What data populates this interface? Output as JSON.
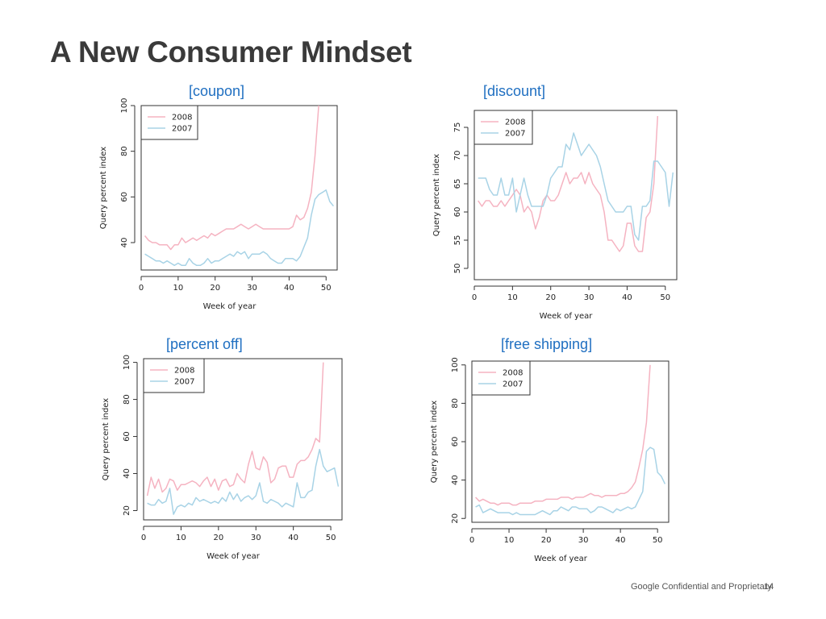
{
  "slide": {
    "title": "A New Consumer Mindset",
    "footer": "Google Confidential and Proprietary",
    "page_number": "14"
  },
  "colors": {
    "2008": "#f5b3c1",
    "2007": "#a8d3e6",
    "title": "#1f6fc1",
    "axis": "#333333"
  },
  "chart_data": [
    {
      "type": "line",
      "title": "[coupon]",
      "xlabel": "Week of year",
      "ylabel": "Query percent index",
      "xlim": [
        0,
        53
      ],
      "ylim": [
        28,
        100
      ],
      "xticks": [
        0,
        10,
        20,
        30,
        40,
        50
      ],
      "yticks": [
        40,
        60,
        80,
        100
      ],
      "legend_position": "top-left",
      "series": [
        {
          "name": "2008",
          "color": "#f5b3c1",
          "x": [
            1,
            2,
            3,
            4,
            5,
            6,
            7,
            8,
            9,
            10,
            11,
            12,
            13,
            14,
            15,
            16,
            17,
            18,
            19,
            20,
            21,
            22,
            23,
            24,
            25,
            26,
            27,
            28,
            29,
            30,
            31,
            32,
            33,
            34,
            35,
            36,
            37,
            38,
            39,
            40,
            41,
            42,
            43,
            44,
            45,
            46,
            47,
            48
          ],
          "y": [
            43,
            41,
            40,
            40,
            39,
            39,
            39,
            37,
            39,
            39,
            42,
            40,
            41,
            42,
            41,
            42,
            43,
            42,
            44,
            43,
            44,
            45,
            46,
            46,
            46,
            47,
            48,
            47,
            46,
            47,
            48,
            47,
            46,
            46,
            46,
            46,
            46,
            46,
            46,
            46,
            47,
            52,
            50,
            51,
            55,
            62,
            78,
            100
          ]
        },
        {
          "name": "2007",
          "color": "#a8d3e6",
          "x": [
            1,
            2,
            3,
            4,
            5,
            6,
            7,
            8,
            9,
            10,
            11,
            12,
            13,
            14,
            15,
            16,
            17,
            18,
            19,
            20,
            21,
            22,
            23,
            24,
            25,
            26,
            27,
            28,
            29,
            30,
            31,
            32,
            33,
            34,
            35,
            36,
            37,
            38,
            39,
            40,
            41,
            42,
            43,
            44,
            45,
            46,
            47,
            48,
            49,
            50,
            51,
            52
          ],
          "y": [
            35,
            34,
            33,
            32,
            32,
            31,
            32,
            31,
            30,
            31,
            30,
            30,
            33,
            31,
            30,
            30,
            31,
            33,
            31,
            32,
            32,
            33,
            34,
            35,
            34,
            36,
            35,
            36,
            33,
            35,
            35,
            35,
            36,
            35,
            33,
            32,
            31,
            31,
            33,
            33,
            33,
            32,
            34,
            38,
            42,
            52,
            59,
            61,
            62,
            63,
            58,
            56
          ]
        }
      ]
    },
    {
      "type": "line",
      "title": "[discount]",
      "xlabel": "Week of year",
      "ylabel": "Query percent index",
      "xlim": [
        0,
        53
      ],
      "ylim": [
        48,
        78
      ],
      "xticks": [
        0,
        10,
        20,
        30,
        40,
        50
      ],
      "yticks": [
        50,
        55,
        60,
        65,
        70,
        75
      ],
      "legend_position": "top-left",
      "series": [
        {
          "name": "2008",
          "color": "#f5b3c1",
          "x": [
            1,
            2,
            3,
            4,
            5,
            6,
            7,
            8,
            9,
            10,
            11,
            12,
            13,
            14,
            15,
            16,
            17,
            18,
            19,
            20,
            21,
            22,
            23,
            24,
            25,
            26,
            27,
            28,
            29,
            30,
            31,
            32,
            33,
            34,
            35,
            36,
            37,
            38,
            39,
            40,
            41,
            42,
            43,
            44,
            45,
            46,
            47,
            48
          ],
          "y": [
            62,
            61,
            62,
            62,
            61,
            61,
            62,
            61,
            62,
            63,
            64,
            63,
            60,
            61,
            60,
            57,
            59,
            62,
            63,
            62,
            62,
            63,
            65,
            67,
            65,
            66,
            66,
            67,
            65,
            67,
            65,
            64,
            63,
            60,
            55,
            55,
            54,
            53,
            54,
            58,
            58,
            54,
            53,
            53,
            59,
            60,
            65,
            77
          ]
        },
        {
          "name": "2007",
          "color": "#a8d3e6",
          "x": [
            1,
            2,
            3,
            4,
            5,
            6,
            7,
            8,
            9,
            10,
            11,
            12,
            13,
            14,
            15,
            16,
            17,
            18,
            19,
            20,
            21,
            22,
            23,
            24,
            25,
            26,
            27,
            28,
            29,
            30,
            31,
            32,
            33,
            34,
            35,
            36,
            37,
            38,
            39,
            40,
            41,
            42,
            43,
            44,
            45,
            46,
            47,
            48,
            49,
            50,
            51,
            52
          ],
          "y": [
            66,
            66,
            66,
            64,
            63,
            63,
            66,
            63,
            63,
            66,
            60,
            63,
            66,
            63,
            61,
            61,
            61,
            61,
            63,
            66,
            67,
            68,
            68,
            72,
            71,
            74,
            72,
            70,
            71,
            72,
            71,
            70,
            68,
            65,
            62,
            61,
            60,
            60,
            60,
            61,
            61,
            56,
            55,
            61,
            61,
            62,
            69,
            69,
            68,
            67,
            61,
            67
          ]
        }
      ]
    },
    {
      "type": "line",
      "title": "[percent off]",
      "xlabel": "Week of year",
      "ylabel": "Query percent index",
      "xlim": [
        0,
        53
      ],
      "ylim": [
        15,
        102
      ],
      "xticks": [
        0,
        10,
        20,
        30,
        40,
        50
      ],
      "yticks": [
        20,
        40,
        60,
        80,
        100
      ],
      "legend_position": "top-left",
      "series": [
        {
          "name": "2008",
          "color": "#f5b3c1",
          "x": [
            1,
            2,
            3,
            4,
            5,
            6,
            7,
            8,
            9,
            10,
            11,
            12,
            13,
            14,
            15,
            16,
            17,
            18,
            19,
            20,
            21,
            22,
            23,
            24,
            25,
            26,
            27,
            28,
            29,
            30,
            31,
            32,
            33,
            34,
            35,
            36,
            37,
            38,
            39,
            40,
            41,
            42,
            43,
            44,
            45,
            46,
            47,
            48
          ],
          "y": [
            28,
            38,
            32,
            37,
            30,
            32,
            37,
            36,
            31,
            34,
            34,
            35,
            36,
            35,
            33,
            36,
            38,
            33,
            37,
            31,
            36,
            37,
            33,
            34,
            40,
            37,
            35,
            45,
            52,
            43,
            42,
            49,
            46,
            35,
            37,
            43,
            44,
            44,
            38,
            38,
            45,
            47,
            47,
            49,
            53,
            59,
            57,
            100
          ]
        },
        {
          "name": "2007",
          "color": "#a8d3e6",
          "x": [
            1,
            2,
            3,
            4,
            5,
            6,
            7,
            8,
            9,
            10,
            11,
            12,
            13,
            14,
            15,
            16,
            17,
            18,
            19,
            20,
            21,
            22,
            23,
            24,
            25,
            26,
            27,
            28,
            29,
            30,
            31,
            32,
            33,
            34,
            35,
            36,
            37,
            38,
            39,
            40,
            41,
            42,
            43,
            44,
            45,
            46,
            47,
            48,
            49,
            50,
            51,
            52
          ],
          "y": [
            24,
            23,
            23,
            26,
            24,
            25,
            32,
            18,
            22,
            23,
            22,
            24,
            23,
            27,
            25,
            26,
            25,
            24,
            25,
            24,
            27,
            25,
            30,
            26,
            29,
            25,
            27,
            28,
            26,
            28,
            35,
            25,
            24,
            26,
            25,
            24,
            22,
            24,
            23,
            22,
            35,
            27,
            27,
            30,
            31,
            44,
            53,
            44,
            41,
            42,
            43,
            33
          ]
        }
      ]
    },
    {
      "type": "line",
      "title": "[free shipping]",
      "xlabel": "Week of year",
      "ylabel": "Query percent index",
      "xlim": [
        0,
        53
      ],
      "ylim": [
        18,
        102
      ],
      "xticks": [
        0,
        10,
        20,
        30,
        40,
        50
      ],
      "yticks": [
        20,
        40,
        60,
        80,
        100
      ],
      "legend_position": "top-left",
      "series": [
        {
          "name": "2008",
          "color": "#f5b3c1",
          "x": [
            1,
            2,
            3,
            4,
            5,
            6,
            7,
            8,
            9,
            10,
            11,
            12,
            13,
            14,
            15,
            16,
            17,
            18,
            19,
            20,
            21,
            22,
            23,
            24,
            25,
            26,
            27,
            28,
            29,
            30,
            31,
            32,
            33,
            34,
            35,
            36,
            37,
            38,
            39,
            40,
            41,
            42,
            43,
            44,
            45,
            46,
            47,
            48
          ],
          "y": [
            31,
            29,
            30,
            29,
            28,
            28,
            27,
            28,
            28,
            28,
            27,
            27,
            28,
            28,
            28,
            28,
            29,
            29,
            29,
            30,
            30,
            30,
            30,
            31,
            31,
            31,
            30,
            31,
            31,
            31,
            32,
            33,
            32,
            32,
            31,
            32,
            32,
            32,
            32,
            33,
            33,
            34,
            36,
            39,
            47,
            56,
            70,
            100
          ]
        },
        {
          "name": "2007",
          "color": "#a8d3e6",
          "x": [
            1,
            2,
            3,
            4,
            5,
            6,
            7,
            8,
            9,
            10,
            11,
            12,
            13,
            14,
            15,
            16,
            17,
            18,
            19,
            20,
            21,
            22,
            23,
            24,
            25,
            26,
            27,
            28,
            29,
            30,
            31,
            32,
            33,
            34,
            35,
            36,
            37,
            38,
            39,
            40,
            41,
            42,
            43,
            44,
            45,
            46,
            47,
            48,
            49,
            50,
            51,
            52
          ],
          "y": [
            26,
            27,
            23,
            24,
            25,
            24,
            23,
            23,
            23,
            23,
            22,
            23,
            22,
            22,
            22,
            22,
            22,
            23,
            24,
            23,
            22,
            24,
            24,
            26,
            25,
            24,
            26,
            26,
            25,
            25,
            25,
            23,
            24,
            26,
            26,
            25,
            24,
            23,
            25,
            24,
            25,
            26,
            25,
            26,
            30,
            34,
            55,
            57,
            56,
            44,
            42,
            38
          ]
        }
      ]
    }
  ]
}
